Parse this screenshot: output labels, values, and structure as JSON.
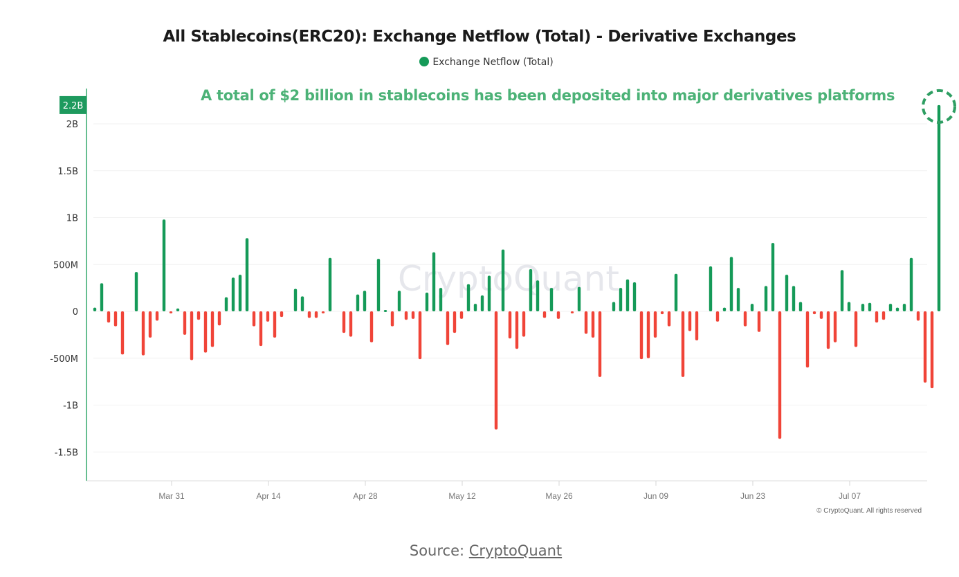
{
  "chart_data": {
    "type": "bar",
    "title": "All Stablecoins(ERC20): Exchange Netflow (Total) - Derivative Exchanges",
    "legend": [
      {
        "name": "Exchange Netflow (Total)",
        "color": "#159a58"
      }
    ],
    "legend_position": "top-center",
    "annotation": "A total of $2 billion in stablecoins has been deposited into major derivatives platforms",
    "current_value_label": "2.2B",
    "watermark": "CryptoQuant",
    "copyright": "© CryptoQuant. All rights reserved",
    "xlabel": "",
    "ylabel": "",
    "ylim": [
      -1800000000,
      2300000000
    ],
    "grid": true,
    "yticks": [
      {
        "value": 2000000000,
        "label": "2B"
      },
      {
        "value": 1500000000,
        "label": "1.5B"
      },
      {
        "value": 1000000000,
        "label": "1B"
      },
      {
        "value": 500000000,
        "label": "500M"
      },
      {
        "value": 0,
        "label": "0"
      },
      {
        "value": -500000000,
        "label": "-500M"
      },
      {
        "value": -1000000000,
        "label": "-1B"
      },
      {
        "value": -1500000000,
        "label": "-1.5B"
      }
    ],
    "xticks": [
      {
        "day": 11,
        "label": "Mar 31"
      },
      {
        "day": 25,
        "label": "Apr 14"
      },
      {
        "day": 39,
        "label": "Apr 28"
      },
      {
        "day": 53,
        "label": "May 12"
      },
      {
        "day": 67,
        "label": "May 26"
      },
      {
        "day": 81,
        "label": "Jun 09"
      },
      {
        "day": 95,
        "label": "Jun 23"
      },
      {
        "day": 109,
        "label": "Jul 07"
      }
    ],
    "x_start_date": "Mar 20",
    "positive_color": "#159a58",
    "negative_color": "#f04438",
    "values_millions": [
      40,
      300,
      -120,
      -160,
      -460,
      0,
      420,
      -470,
      -280,
      -100,
      980,
      -15,
      30,
      -250,
      -520,
      -90,
      -440,
      -380,
      -150,
      150,
      360,
      390,
      780,
      -160,
      -370,
      -110,
      -280,
      -60,
      0,
      240,
      160,
      -70,
      -70,
      -20,
      570,
      0,
      -230,
      -270,
      180,
      220,
      -330,
      560,
      15,
      -160,
      220,
      -90,
      -80,
      -510,
      200,
      630,
      250,
      -360,
      -230,
      -80,
      290,
      80,
      170,
      380,
      -1260,
      660,
      -290,
      -400,
      -270,
      450,
      330,
      -70,
      250,
      -80,
      0,
      -20,
      260,
      -240,
      -280,
      -700,
      0,
      100,
      250,
      340,
      310,
      -510,
      -500,
      -280,
      -30,
      -160,
      400,
      -700,
      -210,
      -310,
      0,
      480,
      -110,
      40,
      580,
      250,
      -160,
      80,
      -220,
      270,
      730,
      -1360,
      390,
      270,
      100,
      -600,
      -30,
      -80,
      -400,
      -330,
      440,
      100,
      -380,
      80,
      90,
      -120,
      -90,
      80,
      40,
      80,
      570,
      -100,
      -760,
      -820,
      2200
    ]
  },
  "page": {
    "source_prefix": "Source:",
    "source_link": "CryptoQuant"
  }
}
